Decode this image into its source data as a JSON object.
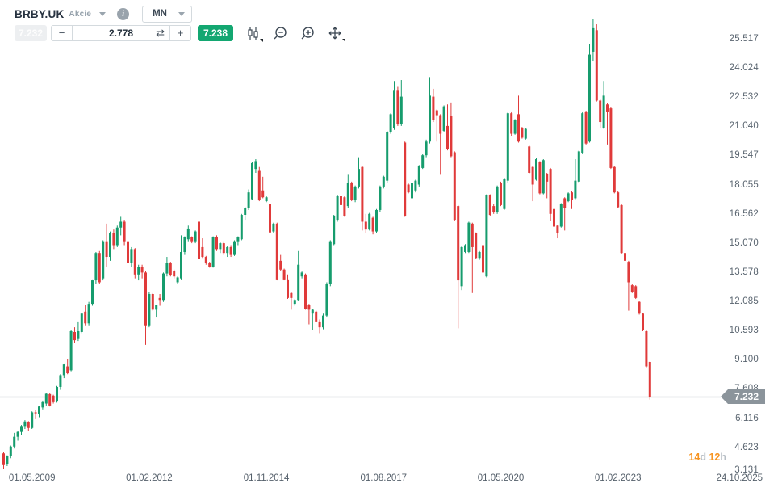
{
  "toolbar": {
    "symbol": "BRBY.UK",
    "instrument_type": "Akcie",
    "timeframe": "MN",
    "bid_badge": "7.232",
    "minus_label": "−",
    "step_value": "2.778",
    "swap_glyph": "⇄",
    "plus_label": "+",
    "ask_badge": "7.238"
  },
  "countdown": {
    "days": "14",
    "days_unit": "d",
    "hours": "12",
    "hours_unit": "h"
  },
  "price_line": {
    "value": 7.232,
    "label": "7.232"
  },
  "colors": {
    "up": "#169c6d",
    "down": "#e03a3a",
    "price_line": "#a8afb6",
    "badge": "#8b949b",
    "axis_text": "#5a6570",
    "countdown_orange": "#f79421"
  },
  "axes": {
    "price_ticks": [
      "25.517",
      "24.024",
      "22.532",
      "21.040",
      "19.547",
      "18.055",
      "16.562",
      "15.070",
      "13.578",
      "12.085",
      "10.593",
      "9.100",
      "7.608",
      "6.116",
      "4.623",
      "3.131"
    ],
    "time_ticks": [
      {
        "label": "01.05.2009",
        "month": 8
      },
      {
        "label": "01.02.2012",
        "month": 41
      },
      {
        "label": "01.11.2014",
        "month": 74
      },
      {
        "label": "01.08.2017",
        "month": 107
      },
      {
        "label": "01.05.2020",
        "month": 140
      },
      {
        "label": "01.02.2023",
        "month": 173
      },
      {
        "label": "24.10.2025",
        "align": "right"
      }
    ]
  },
  "chart_data": {
    "type": "candlestick",
    "symbol": "BRBY.UK",
    "interval": "1M",
    "start_month": "2008-09",
    "ylim": [
      3.131,
      26.8
    ],
    "grid": false,
    "last_close": 7.232,
    "candles": [
      [
        4.35,
        4.4,
        3.55,
        3.75
      ],
      [
        3.8,
        4.25,
        3.7,
        4.2
      ],
      [
        4.2,
        4.75,
        4.1,
        4.7
      ],
      [
        4.7,
        5.4,
        4.6,
        5.2
      ],
      [
        5.2,
        5.5,
        5.0,
        5.45
      ],
      [
        5.45,
        5.8,
        5.3,
        5.75
      ],
      [
        5.75,
        6.05,
        5.6,
        5.98
      ],
      [
        5.95,
        6.0,
        5.5,
        5.65
      ],
      [
        5.65,
        6.5,
        5.6,
        6.45
      ],
      [
        6.45,
        6.55,
        6.1,
        6.4
      ],
      [
        6.35,
        6.8,
        6.2,
        6.75
      ],
      [
        6.7,
        7.05,
        6.6,
        6.97
      ],
      [
        6.9,
        7.45,
        6.8,
        7.4
      ],
      [
        7.38,
        7.42,
        6.75,
        6.8
      ],
      [
        7.3,
        7.35,
        6.9,
        6.97
      ],
      [
        7.0,
        7.8,
        6.95,
        7.75
      ],
      [
        7.75,
        8.4,
        7.6,
        8.35
      ],
      [
        8.35,
        8.95,
        8.2,
        8.9
      ],
      [
        8.8,
        9.17,
        8.4,
        8.45
      ],
      [
        8.6,
        10.65,
        8.55,
        10.6
      ],
      [
        10.56,
        10.8,
        10.0,
        10.14
      ],
      [
        10.2,
        11.1,
        10.1,
        10.6
      ],
      [
        10.56,
        11.55,
        10.5,
        11.5
      ],
      [
        11.6,
        11.95,
        10.9,
        11.0
      ],
      [
        11.0,
        12.1,
        10.9,
        12.0
      ],
      [
        12.0,
        13.25,
        11.9,
        13.2
      ],
      [
        13.2,
        14.65,
        13.0,
        14.6
      ],
      [
        14.6,
        14.7,
        13.0,
        13.1
      ],
      [
        13.3,
        15.25,
        13.2,
        15.2
      ],
      [
        15.2,
        16.1,
        13.9,
        14.4
      ],
      [
        14.4,
        15.7,
        14.2,
        15.6
      ],
      [
        15.6,
        15.8,
        14.8,
        15.0
      ],
      [
        15.0,
        16.0,
        14.9,
        15.9
      ],
      [
        15.9,
        16.45,
        15.5,
        16.2
      ],
      [
        16.2,
        16.3,
        15.0,
        15.2
      ],
      [
        15.2,
        15.3,
        13.9,
        14.1
      ],
      [
        14.1,
        14.9,
        13.9,
        14.8
      ],
      [
        14.8,
        14.85,
        13.3,
        13.5
      ],
      [
        13.5,
        14.0,
        13.2,
        13.9
      ],
      [
        13.9,
        14.0,
        13.3,
        13.6
      ],
      [
        13.6,
        13.7,
        9.9,
        10.9
      ],
      [
        10.9,
        12.6,
        10.8,
        12.5
      ],
      [
        12.5,
        12.55,
        11.65,
        11.7
      ],
      [
        11.7,
        11.95,
        11.3,
        11.95
      ],
      [
        12.3,
        12.5,
        11.9,
        12.2
      ],
      [
        12.2,
        13.6,
        12.1,
        13.55
      ],
      [
        13.55,
        14.4,
        13.4,
        14.1
      ],
      [
        14.1,
        14.15,
        13.4,
        13.45
      ],
      [
        13.7,
        13.75,
        13.3,
        13.4
      ],
      [
        13.1,
        13.4,
        13.0,
        13.35
      ],
      [
        13.3,
        15.5,
        13.25,
        14.65
      ],
      [
        14.65,
        15.45,
        14.5,
        15.4
      ],
      [
        15.3,
        16.0,
        15.2,
        15.85
      ],
      [
        15.4,
        15.45,
        15.1,
        15.2
      ],
      [
        15.2,
        15.75,
        15.1,
        15.7
      ],
      [
        16.2,
        16.35,
        14.25,
        14.3
      ],
      [
        14.9,
        15.35,
        14.35,
        14.4
      ],
      [
        14.4,
        14.45,
        14.0,
        14.1
      ],
      [
        14.1,
        14.15,
        13.85,
        13.9
      ],
      [
        13.9,
        15.45,
        13.85,
        15.4
      ],
      [
        15.4,
        15.5,
        14.7,
        14.8
      ],
      [
        14.8,
        15.15,
        14.6,
        15.1
      ],
      [
        15.1,
        15.2,
        14.5,
        14.6
      ],
      [
        14.6,
        14.95,
        14.4,
        14.9
      ],
      [
        14.9,
        15.0,
        14.4,
        14.5
      ],
      [
        14.5,
        15.25,
        14.45,
        15.2
      ],
      [
        15.2,
        15.45,
        15.0,
        15.4
      ],
      [
        15.3,
        16.6,
        15.25,
        16.55
      ],
      [
        16.55,
        16.95,
        16.3,
        16.9
      ],
      [
        16.9,
        17.85,
        16.8,
        17.7
      ],
      [
        17.35,
        19.25,
        17.3,
        19.2
      ],
      [
        18.9,
        19.4,
        18.7,
        19.3
      ],
      [
        18.8,
        19.0,
        17.25,
        17.3
      ],
      [
        17.8,
        18.5,
        17.4,
        17.45
      ],
      [
        17.25,
        17.5,
        17.2,
        17.45
      ],
      [
        17.1,
        17.15,
        15.6,
        15.65
      ],
      [
        15.7,
        16.15,
        15.6,
        16.1
      ],
      [
        16.1,
        16.15,
        13.2,
        13.25
      ],
      [
        14.2,
        14.5,
        13.7,
        13.75
      ],
      [
        13.75,
        13.8,
        13.2,
        13.25
      ],
      [
        13.25,
        13.5,
        12.25,
        12.3
      ],
      [
        12.55,
        12.6,
        11.7,
        12.3
      ],
      [
        12.0,
        12.25,
        11.9,
        12.2
      ],
      [
        12.2,
        14.7,
        12.15,
        14.0
      ],
      [
        13.4,
        13.65,
        13.3,
        13.6
      ],
      [
        13.5,
        13.55,
        11.7,
        11.75
      ],
      [
        11.95,
        12.0,
        10.95,
        11.7
      ],
      [
        11.5,
        11.75,
        10.65,
        11.7
      ],
      [
        11.6,
        11.65,
        11.05,
        11.1
      ],
      [
        11.1,
        11.2,
        10.5,
        10.8
      ],
      [
        10.8,
        11.5,
        10.7,
        11.4
      ],
      [
        11.4,
        13.1,
        11.3,
        13.0
      ],
      [
        13.0,
        15.25,
        12.9,
        15.2
      ],
      [
        15.05,
        16.55,
        15.0,
        16.5
      ],
      [
        16.3,
        17.55,
        16.2,
        17.5
      ],
      [
        17.5,
        17.55,
        15.55,
        17.05
      ],
      [
        17.45,
        17.5,
        16.45,
        16.5
      ],
      [
        17.0,
        18.6,
        16.9,
        18.2
      ],
      [
        18.2,
        18.25,
        17.25,
        17.3
      ],
      [
        17.3,
        18.05,
        17.2,
        18.0
      ],
      [
        18.0,
        19.5,
        17.9,
        18.9
      ],
      [
        19.0,
        19.05,
        15.75,
        16.2
      ],
      [
        16.2,
        16.6,
        15.6,
        15.8
      ],
      [
        15.8,
        16.65,
        15.75,
        16.6
      ],
      [
        16.4,
        16.45,
        15.55,
        15.7
      ],
      [
        15.7,
        16.85,
        15.6,
        16.8
      ],
      [
        16.8,
        18.05,
        16.7,
        18.0
      ],
      [
        18.0,
        18.55,
        17.9,
        18.5
      ],
      [
        18.3,
        20.85,
        18.2,
        20.8
      ],
      [
        20.8,
        21.75,
        20.7,
        21.7
      ],
      [
        21.0,
        23.4,
        20.9,
        22.9
      ],
      [
        22.9,
        23.1,
        21.1,
        21.2
      ],
      [
        21.2,
        23.45,
        21.1,
        22.6
      ],
      [
        20.25,
        20.3,
        16.45,
        16.5
      ],
      [
        18.1,
        18.15,
        17.65,
        17.7
      ],
      [
        17.4,
        18.25,
        16.3,
        18.2
      ],
      [
        17.8,
        18.35,
        17.7,
        18.3
      ],
      [
        18.1,
        19.1,
        18.0,
        19.05
      ],
      [
        18.95,
        19.65,
        18.9,
        19.6
      ],
      [
        19.6,
        20.4,
        19.5,
        20.3
      ],
      [
        20.3,
        23.6,
        20.2,
        22.65
      ],
      [
        22.6,
        23.0,
        21.3,
        21.4
      ],
      [
        21.9,
        21.95,
        20.3,
        21.65
      ],
      [
        21.65,
        21.7,
        18.6,
        20.7
      ],
      [
        20.85,
        22.15,
        20.8,
        22.1
      ],
      [
        21.1,
        22.2,
        19.85,
        19.9
      ],
      [
        21.6,
        22.3,
        19.5,
        19.55
      ],
      [
        19.75,
        19.8,
        16.25,
        16.3
      ],
      [
        17.0,
        17.05,
        10.75,
        13.2
      ],
      [
        12.9,
        14.95,
        12.7,
        14.9
      ],
      [
        14.65,
        15.05,
        14.6,
        15.0
      ],
      [
        14.65,
        16.2,
        14.6,
        16.15
      ],
      [
        16.1,
        16.15,
        12.55,
        14.9
      ],
      [
        15.6,
        15.65,
        14.3,
        14.35
      ],
      [
        14.35,
        14.7,
        14.25,
        14.65
      ],
      [
        15.0,
        15.65,
        13.55,
        13.6
      ],
      [
        13.4,
        17.6,
        13.35,
        17.55
      ],
      [
        17.55,
        17.6,
        16.5,
        16.55
      ],
      [
        17.0,
        17.1,
        16.6,
        16.7
      ],
      [
        16.7,
        18.05,
        16.6,
        18.0
      ],
      [
        18.2,
        18.25,
        17.0,
        17.05
      ],
      [
        16.85,
        18.45,
        16.8,
        18.4
      ],
      [
        18.3,
        21.8,
        18.2,
        21.75
      ],
      [
        21.75,
        21.8,
        20.6,
        20.7
      ],
      [
        20.7,
        21.45,
        20.65,
        21.4
      ],
      [
        21.7,
        22.65,
        20.25,
        20.3
      ],
      [
        21.0,
        21.05,
        20.45,
        20.5
      ],
      [
        20.45,
        21.0,
        20.4,
        20.95
      ],
      [
        20.05,
        20.1,
        18.65,
        18.7
      ],
      [
        19.0,
        19.05,
        17.25,
        18.1
      ],
      [
        18.35,
        19.45,
        18.3,
        19.4
      ],
      [
        19.25,
        19.3,
        17.6,
        17.65
      ],
      [
        17.65,
        19.4,
        17.6,
        19.35
      ],
      [
        18.65,
        18.7,
        17.4,
        18.25
      ],
      [
        18.9,
        18.95,
        16.25,
        16.6
      ],
      [
        16.85,
        16.9,
        15.2,
        15.95
      ],
      [
        16.0,
        16.05,
        15.35,
        15.6
      ],
      [
        15.95,
        17.15,
        15.9,
        17.1
      ],
      [
        17.4,
        17.45,
        15.75,
        16.9
      ],
      [
        17.25,
        17.7,
        17.2,
        17.65
      ],
      [
        17.7,
        17.75,
        16.85,
        17.3
      ],
      [
        17.4,
        19.4,
        17.35,
        18.3
      ],
      [
        18.25,
        19.85,
        18.2,
        19.8
      ],
      [
        19.7,
        21.8,
        19.65,
        21.75
      ],
      [
        21.8,
        21.85,
        20.15,
        20.2
      ],
      [
        20.3,
        25.3,
        20.25,
        24.75
      ],
      [
        24.9,
        26.55,
        24.4,
        26.1
      ],
      [
        26.0,
        26.3,
        22.35,
        22.4
      ],
      [
        22.4,
        22.45,
        21.0,
        21.3
      ],
      [
        21.0,
        23.4,
        20.95,
        22.65
      ],
      [
        22.2,
        22.25,
        20.15,
        21.8
      ],
      [
        22.0,
        22.05,
        18.9,
        18.95
      ],
      [
        19.0,
        19.05,
        17.65,
        17.7
      ],
      [
        17.7,
        17.75,
        16.9,
        16.94
      ],
      [
        17.05,
        17.1,
        14.55,
        14.6
      ],
      [
        14.6,
        15.0,
        14.15,
        14.2
      ],
      [
        14.15,
        14.2,
        11.65,
        13.1
      ],
      [
        12.95,
        13.0,
        12.55,
        12.6
      ],
      [
        12.9,
        12.95,
        12.25,
        12.3
      ],
      [
        12.1,
        12.15,
        11.45,
        11.5
      ],
      [
        11.5,
        11.55,
        10.6,
        10.65
      ],
      [
        10.6,
        10.65,
        8.75,
        8.8
      ],
      [
        9.03,
        9.05,
        7.1,
        7.23
      ]
    ]
  }
}
